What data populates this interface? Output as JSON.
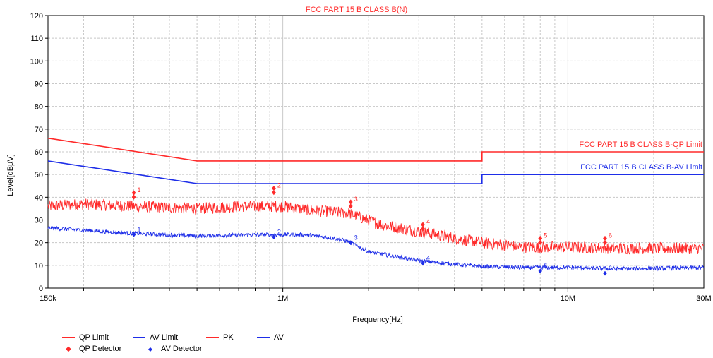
{
  "colors": {
    "qp": "#ff2a2a",
    "av": "#1e2ee8",
    "grid": "#c8c8c8",
    "axis": "#000000"
  },
  "legend": {
    "qp_limit": "QP Limit",
    "av_limit": "AV Limit",
    "pk": "PK",
    "av": "AV",
    "qp_detector": "QP Detector",
    "av_detector": "AV Detector"
  },
  "chart_data": {
    "type": "line",
    "title": "FCC PART 15 B CLASS B(N)",
    "xlabel": "Frequency[Hz]",
    "ylabel": "Level[dBµV]",
    "x_scale": "log",
    "xlim": [
      150000,
      30000000
    ],
    "ylim": [
      0,
      120
    ],
    "y_ticks": [
      "0",
      "10",
      "20",
      "30",
      "40",
      "50",
      "60",
      "70",
      "80",
      "90",
      "100",
      "110",
      "120"
    ],
    "x_tick_labels": [
      {
        "x": 150000,
        "label": "150k"
      },
      {
        "x": 1000000,
        "label": "1M"
      },
      {
        "x": 10000000,
        "label": "10M"
      },
      {
        "x": 30000000,
        "label": "30M"
      }
    ],
    "grid": true,
    "legend_position": "bottom-left",
    "limits": [
      {
        "name": "QP Limit",
        "label": "FCC PART 15 B CLASS B-QP Limit",
        "points": [
          [
            150000,
            66
          ],
          [
            500000,
            56
          ],
          [
            5000000,
            56
          ],
          [
            5000000,
            60
          ],
          [
            30000000,
            60
          ]
        ]
      },
      {
        "name": "AV Limit",
        "label": "FCC PART 15 B CLASS B-AV Limit",
        "points": [
          [
            150000,
            56
          ],
          [
            500000,
            46
          ],
          [
            5000000,
            46
          ],
          [
            5000000,
            50
          ],
          [
            30000000,
            50
          ]
        ]
      }
    ],
    "series": [
      {
        "name": "PK",
        "envelope": [
          [
            150000,
            36
          ],
          [
            200000,
            37
          ],
          [
            300000,
            36
          ],
          [
            500000,
            35
          ],
          [
            700000,
            36
          ],
          [
            1000000,
            36
          ],
          [
            1300000,
            34
          ],
          [
            1700000,
            33
          ],
          [
            2200000,
            28
          ],
          [
            3000000,
            25
          ],
          [
            4000000,
            22
          ],
          [
            5000000,
            20
          ],
          [
            7000000,
            18
          ],
          [
            10000000,
            18
          ],
          [
            15000000,
            17.5
          ],
          [
            20000000,
            17.5
          ],
          [
            30000000,
            17.5
          ]
        ]
      },
      {
        "name": "AV",
        "envelope": [
          [
            150000,
            26.5
          ],
          [
            200000,
            25.5
          ],
          [
            300000,
            24
          ],
          [
            500000,
            23
          ],
          [
            800000,
            23.5
          ],
          [
            1200000,
            23.5
          ],
          [
            1500000,
            22
          ],
          [
            1700000,
            20.5
          ],
          [
            2000000,
            16
          ],
          [
            3000000,
            12
          ],
          [
            4000000,
            10.5
          ],
          [
            5000000,
            9.5
          ],
          [
            7000000,
            9
          ],
          [
            10000000,
            9
          ],
          [
            15000000,
            8.5
          ],
          [
            30000000,
            9
          ]
        ]
      }
    ],
    "markers": {
      "qp_detector": [
        {
          "id": "1",
          "x": 300000,
          "y": 41
        },
        {
          "id": "2",
          "x": 930000,
          "y": 43
        },
        {
          "id": "3",
          "x": 1730000,
          "y": 37
        },
        {
          "id": "4",
          "x": 3100000,
          "y": 27
        },
        {
          "id": "5",
          "x": 8000000,
          "y": 21
        },
        {
          "id": "6",
          "x": 13500000,
          "y": 21
        }
      ],
      "av_detector": [
        {
          "id": "1",
          "x": 300000,
          "y": 23.5
        },
        {
          "id": "2",
          "x": 930000,
          "y": 22.5
        },
        {
          "id": "3",
          "x": 1730000,
          "y": 20
        },
        {
          "id": "4",
          "x": 3100000,
          "y": 11
        },
        {
          "id": "5",
          "x": 8000000,
          "y": 7.5
        },
        {
          "id": "6",
          "x": 13500000,
          "y": 6.5
        }
      ]
    }
  }
}
